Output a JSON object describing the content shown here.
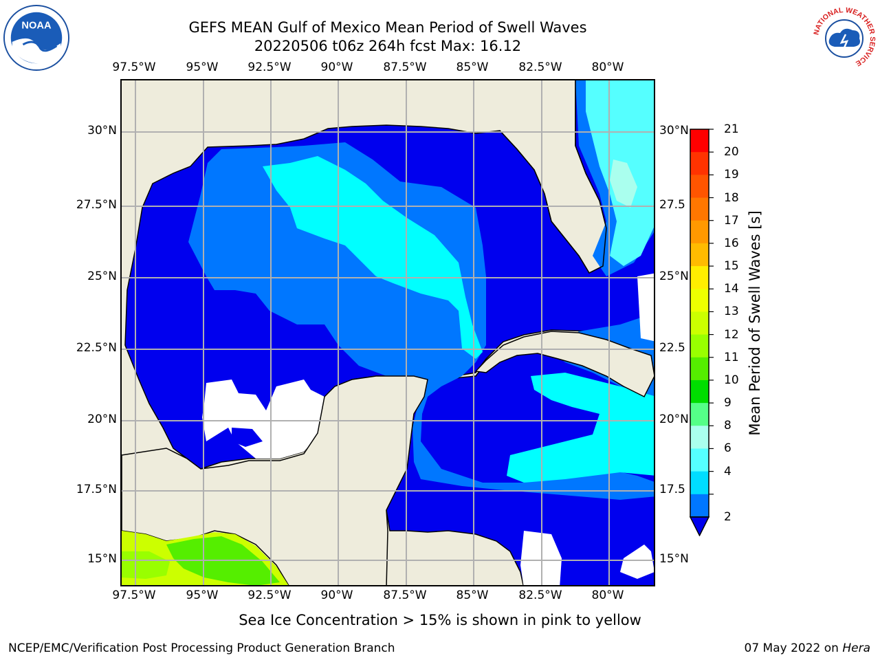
{
  "title": {
    "line1": "GEFS MEAN Gulf of Mexico Mean Period of Swell Waves",
    "line2": "20220506 t06z 264h fcst   Max: 16.12"
  },
  "map": {
    "lon_ticks": [
      "97.5°W",
      "95°W",
      "92.5°W",
      "90°W",
      "87.5°W",
      "85°W",
      "82.5°W",
      "80°W"
    ],
    "lat_ticks_left": [
      "30°N",
      "27.5°N",
      "25°N",
      "22.5°N",
      "20°N",
      "17.5°N",
      "15°N"
    ],
    "lat_ticks_right": [
      "30°N",
      "27.5",
      "25°N",
      "22.5",
      "20°N",
      "17.5",
      "15°N"
    ],
    "land_color": "#eeecdc",
    "grid_color": "#b0b0b0"
  },
  "colorbar": {
    "title": "Mean Period of Swell Waves [s]",
    "labels": [
      "21",
      "20",
      "19",
      "18",
      "17",
      "16",
      "15",
      "14",
      "13",
      "12",
      "11",
      "10",
      "9",
      "8",
      "6",
      "4",
      "2"
    ],
    "colors": [
      "#ff0000",
      "#ff3300",
      "#ff5500",
      "#ff7700",
      "#ff9900",
      "#ffbb00",
      "#ffee00",
      "#eeff00",
      "#ccff00",
      "#99ff00",
      "#55ee00",
      "#00dd00",
      "#55ff88",
      "#aaffee",
      "#55ffff",
      "#00ddff",
      "#0077ff"
    ],
    "under_color": "#0000ee"
  },
  "footnote": "Sea Ice Concentration > 15% is shown in pink to yellow",
  "credit": "NCEP/EMC/Verification Post Processing Product Generation Branch",
  "date": {
    "text": "07 May 2022 on ",
    "system": "Hera"
  },
  "logos": {
    "left": "NOAA",
    "right": "NATIONAL WEATHER SERVICE"
  }
}
